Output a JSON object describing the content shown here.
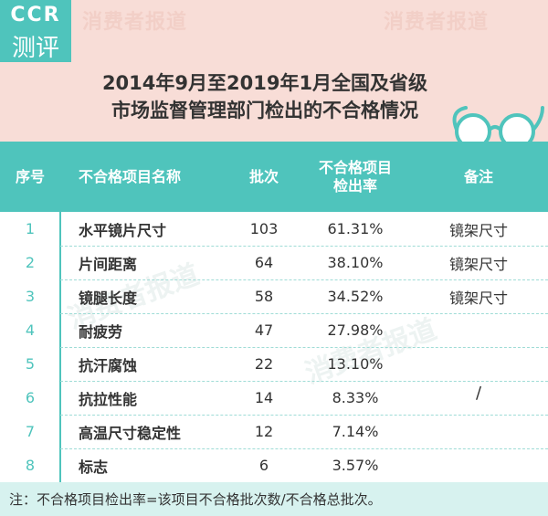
{
  "logo": {
    "top": "CCR",
    "bottom": "测评"
  },
  "watermark": "消费者报道",
  "title": {
    "line1": "2014年9月至2019年1月全国及省级",
    "line2_prefix": "市场监督管理部门检出的",
    "line2_highlight": "不合格情况"
  },
  "colors": {
    "accent": "#4fc4bc",
    "header_bg": "#f8ddd7",
    "note_bg": "#d7f2ef"
  },
  "chart_data": {
    "type": "table",
    "columns": [
      "序号",
      "不合格项目名称",
      "批次",
      "不合格项目检出率",
      "备注"
    ],
    "rows": [
      {
        "no": "1",
        "name": "水平镜片尺寸",
        "batches": "103",
        "rate": "61.31%",
        "remark": "镜架尺寸"
      },
      {
        "no": "2",
        "name": "片间距离",
        "batches": "64",
        "rate": "38.10%",
        "remark": "镜架尺寸"
      },
      {
        "no": "3",
        "name": "镜腿长度",
        "batches": "58",
        "rate": "34.52%",
        "remark": "镜架尺寸"
      },
      {
        "no": "4",
        "name": "耐疲劳",
        "batches": "47",
        "rate": "27.98%",
        "remark": ""
      },
      {
        "no": "5",
        "name": "抗汗腐蚀",
        "batches": "22",
        "rate": "13.10%",
        "remark": ""
      },
      {
        "no": "6",
        "name": "抗拉性能",
        "batches": "14",
        "rate": "8.33%",
        "remark": ""
      },
      {
        "no": "7",
        "name": "高温尺寸稳定性",
        "batches": "12",
        "rate": "7.14%",
        "remark": ""
      },
      {
        "no": "8",
        "name": "标志",
        "batches": "6",
        "rate": "3.57%",
        "remark": ""
      }
    ],
    "merged_remark": "/"
  },
  "header_labels": {
    "col3_line1": "不合格项目",
    "col3_line2": "检出率"
  },
  "note": "注：不合格项目检出率=该项目不合格批次数/不合格总批次。"
}
